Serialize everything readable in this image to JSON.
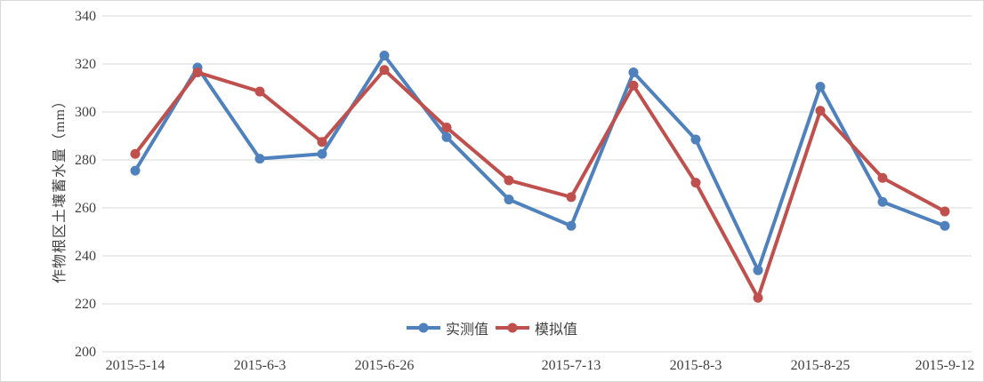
{
  "chart_data": {
    "type": "line",
    "title": "",
    "ylabel": "作物根区土壤蓄水量（mm）",
    "xlabel": "",
    "ylim": [
      200,
      340
    ],
    "ytick_interval": 20,
    "yticks": [
      340,
      320,
      300,
      280,
      260,
      240,
      220,
      200
    ],
    "num_points": 14,
    "x_tick_labels": [
      "2015-5-14",
      "2015-6-3",
      "2015-6-26",
      "2015-7-13",
      "2015-8-3",
      "2015-8-25",
      "2015-9-12"
    ],
    "x_label_point_indices": [
      0,
      2,
      4,
      7,
      9,
      11,
      13
    ],
    "grid": true,
    "legend_position": "bottom-center",
    "series": [
      {
        "name": "实测值",
        "color": "#4F81BD",
        "values": [
          275.5,
          318.5,
          280.5,
          282.5,
          323.5,
          289.5,
          263.5,
          252.5,
          316.5,
          288.5,
          234,
          310.5,
          262.5,
          252.5
        ]
      },
      {
        "name": "模拟值",
        "color": "#C0504D",
        "values": [
          282.5,
          316.5,
          308.5,
          287.5,
          317.5,
          293.5,
          271.5,
          264.5,
          311,
          270.5,
          222.5,
          300.5,
          272.5,
          258.5
        ]
      }
    ],
    "colors": {
      "gridline": "#D9D9D9",
      "axis_text": "#404040",
      "background": "#FFFFFF",
      "border": "#D9D9D9"
    }
  }
}
